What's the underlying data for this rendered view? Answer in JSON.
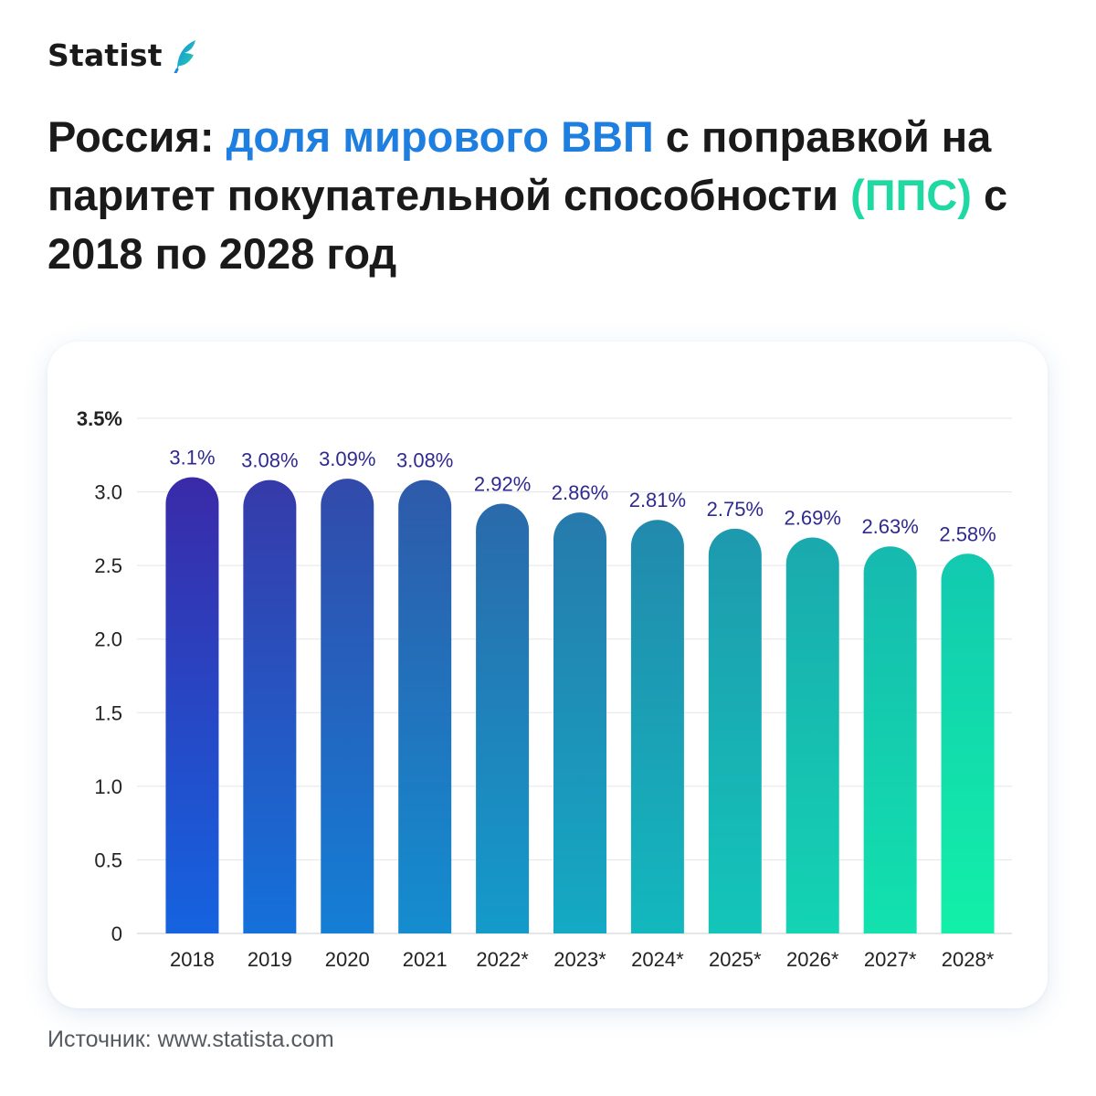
{
  "brand": {
    "name": "Statist",
    "logo_icon": "feather-logo-icon"
  },
  "title": {
    "part1": "Россия: ",
    "part2": "доля мирового ВВП",
    "part3": " с поправкой на паритет покупательной способности ",
    "part4": "(ППС)",
    "part5": " с 2018 по 2028 год"
  },
  "colors": {
    "accent_blue": "#1e7fe0",
    "accent_green": "#1fd9a3",
    "value_label": "#2e2a8f",
    "bar_gradient_start_top": "#3a2aa8",
    "bar_gradient_start_bottom": "#1563e0",
    "bar_gradient_end_top": "#12c9b0",
    "bar_gradient_end_bottom": "#12f0a8"
  },
  "chart_data": {
    "type": "bar",
    "categories": [
      "2018",
      "2019",
      "2020",
      "2021",
      "2022*",
      "2023*",
      "2024*",
      "2025*",
      "2026*",
      "2027*",
      "2028*"
    ],
    "values": [
      3.1,
      3.08,
      3.09,
      3.08,
      2.92,
      2.86,
      2.81,
      2.75,
      2.69,
      2.63,
      2.58
    ],
    "value_labels": [
      "3.1%",
      "3.08%",
      "3.09%",
      "3.08%",
      "2.92%",
      "2.86%",
      "2.81%",
      "2.75%",
      "2.69%",
      "2.63%",
      "2.58%"
    ],
    "y_ticks": [
      "0",
      "0.5",
      "1.0",
      "1.5",
      "2.0",
      "2.5",
      "3.0",
      "3.5%"
    ],
    "y_tick_values": [
      0,
      0.5,
      1.0,
      1.5,
      2.0,
      2.5,
      3.0,
      3.5
    ],
    "ylim": [
      0,
      3.5
    ],
    "grid": true,
    "xlabel": "",
    "ylabel": ""
  },
  "source": "Источник: www.statista.com"
}
